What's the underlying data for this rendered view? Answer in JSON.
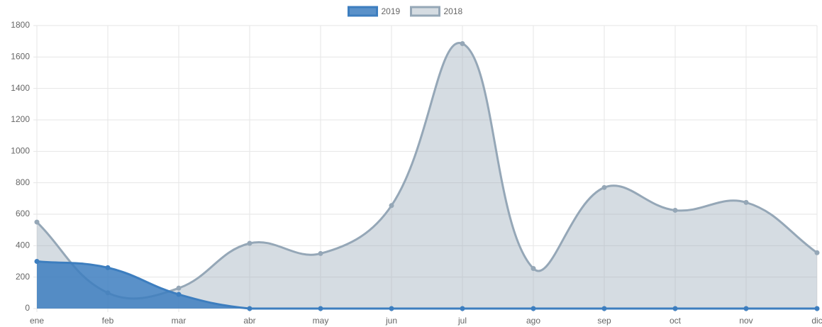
{
  "chart_data": {
    "type": "area",
    "categories": [
      "ene",
      "feb",
      "mar",
      "abr",
      "may",
      "jun",
      "jul",
      "ago",
      "sep",
      "oct",
      "nov",
      "dic"
    ],
    "series": [
      {
        "name": "2019",
        "color": "#3d7ebf",
        "values": [
          300,
          260,
          90,
          0,
          0,
          0,
          0,
          0,
          0,
          0,
          0,
          0
        ]
      },
      {
        "name": "2018",
        "color": "#95a7b7",
        "values": [
          550,
          100,
          130,
          415,
          350,
          655,
          1685,
          255,
          770,
          625,
          675,
          355
        ]
      }
    ],
    "ylim": [
      0,
      1800
    ],
    "yticks": [
      0,
      200,
      400,
      600,
      800,
      1000,
      1200,
      1400,
      1600,
      1800
    ],
    "grid": true,
    "legend": "top"
  }
}
